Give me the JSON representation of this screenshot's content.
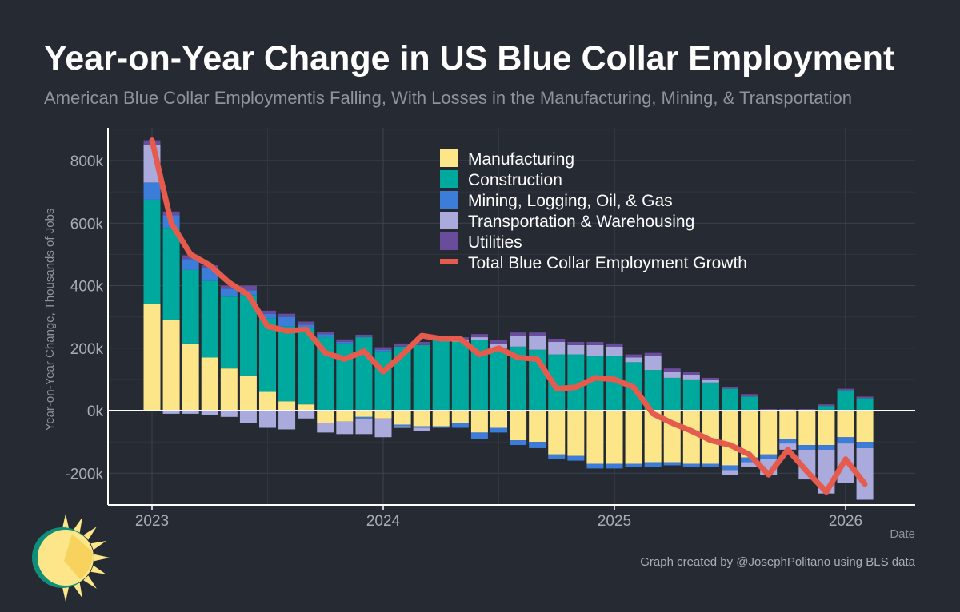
{
  "chart_data": {
    "type": "bar",
    "title": "Year-on-Year Change in US Blue Collar Employment",
    "subtitle": "American Blue Collar Employmentis Falling, With Losses in the Manufacturing, Mining, & Transportation",
    "xlabel": "Date",
    "ylabel": "Year-on-Year Change, Thousands of Jobs",
    "credit": "Graph created by @JosephPolitano using BLS data",
    "ylim": [
      -300,
      900
    ],
    "yticks": [
      -200,
      0,
      200,
      400,
      600,
      800
    ],
    "ytick_labels": [
      "-200k",
      "0k",
      "200k",
      "400k",
      "600k",
      "800k"
    ],
    "xticks": [
      {
        "label": "2023",
        "index": 0
      },
      {
        "label": "2024",
        "index": 12
      },
      {
        "label": "2025",
        "index": 24
      },
      {
        "label": "2026",
        "index": 36
      }
    ],
    "legend_position": "top-center",
    "categories": [
      "2023-01",
      "2023-02",
      "2023-03",
      "2023-04",
      "2023-05",
      "2023-06",
      "2023-07",
      "2023-08",
      "2023-09",
      "2023-10",
      "2023-11",
      "2023-12",
      "2024-01",
      "2024-02",
      "2024-03",
      "2024-04",
      "2024-05",
      "2024-06",
      "2024-07",
      "2024-08",
      "2024-09",
      "2024-10",
      "2024-11",
      "2024-12",
      "2025-01",
      "2025-02",
      "2025-03",
      "2025-04",
      "2025-05",
      "2025-06",
      "2025-07",
      "2025-08",
      "2025-09",
      "2025-10",
      "2025-11",
      "2025-12",
      "2026-01",
      "2026-02"
    ],
    "series": [
      {
        "name": "Manufacturing",
        "color": "#fde68a",
        "values": [
          340,
          290,
          215,
          170,
          135,
          110,
          60,
          30,
          20,
          -40,
          -35,
          -20,
          -25,
          -45,
          -50,
          -50,
          -40,
          -70,
          -55,
          -95,
          -100,
          -140,
          -145,
          -170,
          -170,
          -170,
          -165,
          -165,
          -170,
          -170,
          -175,
          -150,
          -140,
          -90,
          -110,
          -110,
          -85,
          -100
        ]
      },
      {
        "name": "Construction",
        "color": "#00a99d",
        "values": [
          335,
          295,
          235,
          245,
          230,
          260,
          235,
          240,
          245,
          235,
          215,
          235,
          190,
          205,
          210,
          230,
          220,
          225,
          200,
          205,
          195,
          180,
          180,
          175,
          175,
          155,
          130,
          105,
          100,
          90,
          70,
          45,
          0,
          0,
          0,
          15,
          65,
          40
        ]
      },
      {
        "name": "Mining, Logging, Oil, & Gas",
        "color": "#3b7dd8",
        "values": [
          55,
          40,
          35,
          40,
          25,
          15,
          15,
          30,
          10,
          10,
          5,
          -5,
          5,
          -5,
          -5,
          -5,
          -15,
          -20,
          -15,
          -15,
          -20,
          -15,
          -15,
          -15,
          -15,
          -10,
          -15,
          -10,
          -10,
          -10,
          -15,
          -15,
          -15,
          -15,
          -15,
          -15,
          -20,
          -20
        ]
      },
      {
        "name": "Transportation & Warehousing",
        "color": "#aaaadd",
        "values": [
          120,
          -10,
          -10,
          -15,
          -20,
          -40,
          -55,
          -60,
          -25,
          -30,
          -40,
          -50,
          -60,
          -5,
          -10,
          0,
          5,
          10,
          15,
          35,
          45,
          40,
          30,
          35,
          30,
          15,
          45,
          20,
          15,
          10,
          -15,
          -15,
          -50,
          -20,
          -95,
          -140,
          -125,
          -165
        ]
      },
      {
        "name": "Utilities",
        "color": "#6a4c9c",
        "values": [
          15,
          12,
          12,
          10,
          10,
          15,
          10,
          10,
          10,
          8,
          8,
          8,
          8,
          10,
          10,
          10,
          10,
          10,
          10,
          10,
          10,
          10,
          10,
          10,
          10,
          10,
          10,
          10,
          10,
          5,
          5,
          8,
          5,
          5,
          5,
          5,
          5,
          5
        ]
      },
      {
        "name": "Total Blue Collar Employment Growth",
        "color": "#e55b4d",
        "kind": "line",
        "values": [
          865,
          600,
          500,
          465,
          410,
          370,
          270,
          255,
          260,
          185,
          165,
          190,
          125,
          180,
          240,
          230,
          230,
          180,
          200,
          170,
          165,
          70,
          75,
          105,
          100,
          75,
          -10,
          -40,
          -65,
          -95,
          -110,
          -140,
          -205,
          -125,
          -195,
          -260,
          -155,
          -235
        ]
      }
    ]
  }
}
